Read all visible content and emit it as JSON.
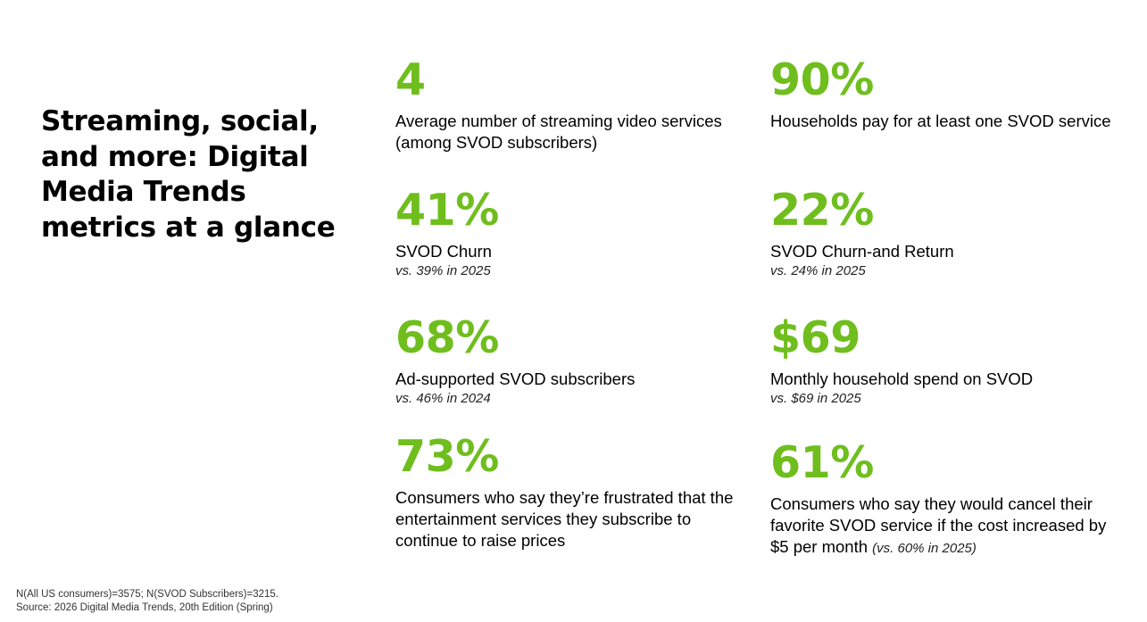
{
  "title": "Streaming, social, and more: Digital Media Trends metrics at a glance",
  "accent_color": "#6fbe1e",
  "metrics": [
    {
      "value": "4",
      "label": "Average number of streaming video services (among SVOD subscribers)",
      "compare": ""
    },
    {
      "value": "90%",
      "label": "Households pay for at least one SVOD service",
      "compare": ""
    },
    {
      "value": "41%",
      "label": "SVOD Churn",
      "compare": "vs. 39% in 2025"
    },
    {
      "value": "22%",
      "label": "SVOD Churn-and Return",
      "compare": "vs. 24% in 2025"
    },
    {
      "value": "68%",
      "label": "Ad-supported SVOD subscribers",
      "compare": "vs. 46% in 2024"
    },
    {
      "value": "$69",
      "label": "Monthly household spend on SVOD",
      "compare": "vs. $69 in 2025"
    },
    {
      "value": "73%",
      "label": "Consumers who say they’re frustrated that the entertainment services they subscribe to continue to raise prices",
      "compare": ""
    },
    {
      "value": "61%",
      "label": "Consumers who say they would cancel their favorite SVOD service if the cost increased by $5 per month",
      "compare": "(vs. 60% in 2025)"
    }
  ],
  "footnote": {
    "line1": "N(All US consumers)=3575; N(SVOD Subscribers)=3215.",
    "line2": "Source: 2026 Digital Media Trends, 20th Edition (Spring)"
  }
}
